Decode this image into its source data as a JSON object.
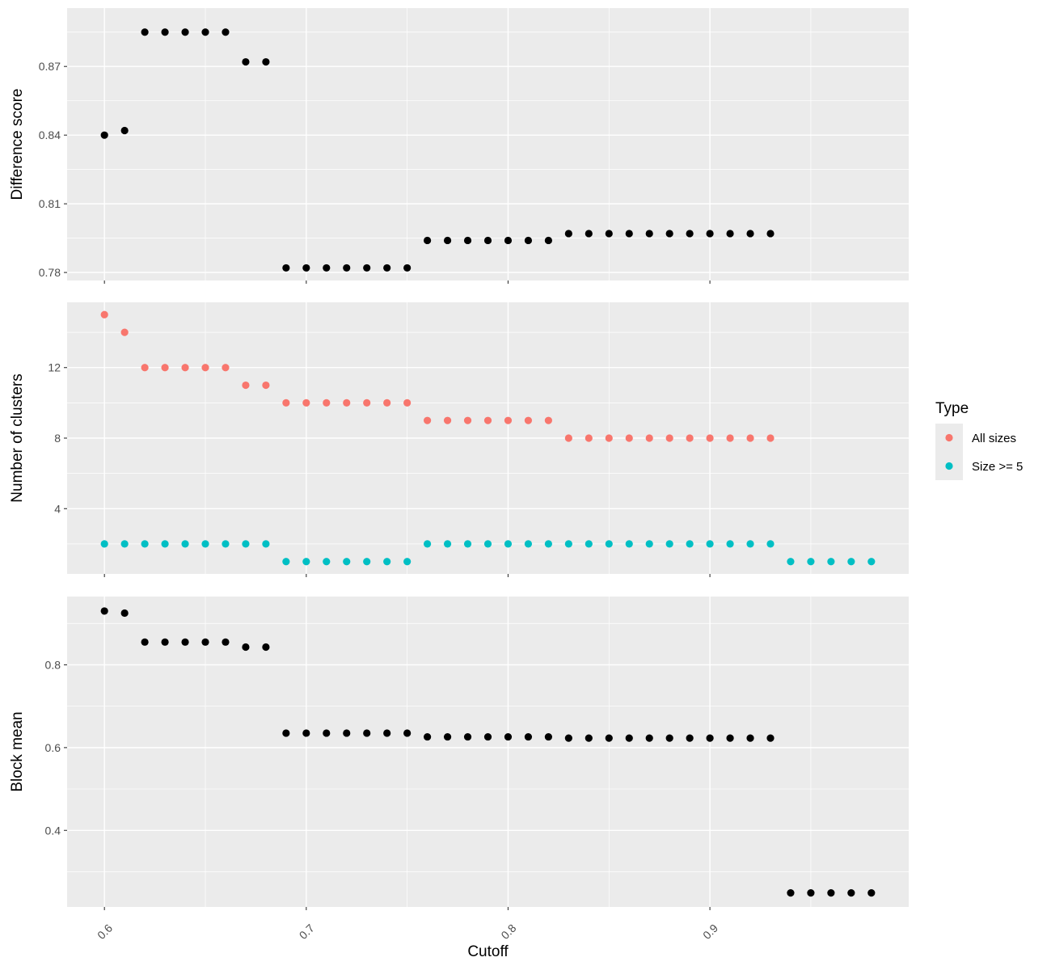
{
  "chart_data": [
    {
      "type": "scatter",
      "panel": "top",
      "xlabel": "",
      "ylabel": "Difference score",
      "xlim": [
        0.5815,
        0.9985
      ],
      "ylim": [
        0.7765,
        0.8955
      ],
      "yticks": [
        0.78,
        0.81,
        0.84,
        0.87
      ],
      "ytick_labels": [
        "0.78",
        "0.81",
        "0.84",
        "0.87"
      ],
      "grid": true,
      "series": [
        {
          "color": "#000000",
          "x": [
            0.6,
            0.61,
            0.62,
            0.63,
            0.64,
            0.65,
            0.66,
            0.67,
            0.68,
            0.69,
            0.7,
            0.71,
            0.72,
            0.73,
            0.74,
            0.75,
            0.76,
            0.77,
            0.78,
            0.79,
            0.8,
            0.81,
            0.82,
            0.83,
            0.84,
            0.85,
            0.86,
            0.87,
            0.88,
            0.89,
            0.9,
            0.91,
            0.92,
            0.93
          ],
          "y": [
            0.84,
            0.842,
            0.885,
            0.885,
            0.885,
            0.885,
            0.885,
            0.872,
            0.872,
            0.782,
            0.782,
            0.782,
            0.782,
            0.782,
            0.782,
            0.782,
            0.794,
            0.794,
            0.794,
            0.794,
            0.794,
            0.794,
            0.794,
            0.797,
            0.797,
            0.797,
            0.797,
            0.797,
            0.797,
            0.797,
            0.797,
            0.797,
            0.797,
            0.797
          ]
        }
      ]
    },
    {
      "type": "scatter",
      "panel": "middle",
      "xlabel": "",
      "ylabel": "Number of clusters",
      "xlim": [
        0.5815,
        0.9985
      ],
      "ylim": [
        0.3,
        15.7
      ],
      "yticks": [
        4,
        8,
        12
      ],
      "ytick_labels": [
        "4",
        "8",
        "12"
      ],
      "grid": true,
      "series": [
        {
          "name": "All sizes",
          "color": "#f8766d",
          "x": [
            0.6,
            0.61,
            0.62,
            0.63,
            0.64,
            0.65,
            0.66,
            0.67,
            0.68,
            0.69,
            0.7,
            0.71,
            0.72,
            0.73,
            0.74,
            0.75,
            0.76,
            0.77,
            0.78,
            0.79,
            0.8,
            0.81,
            0.82,
            0.83,
            0.84,
            0.85,
            0.86,
            0.87,
            0.88,
            0.89,
            0.9,
            0.91,
            0.92,
            0.93
          ],
          "y": [
            15,
            14,
            12,
            12,
            12,
            12,
            12,
            11,
            11,
            10,
            10,
            10,
            10,
            10,
            10,
            10,
            9,
            9,
            9,
            9,
            9,
            9,
            9,
            8,
            8,
            8,
            8,
            8,
            8,
            8,
            8,
            8,
            8,
            8
          ]
        },
        {
          "name": "Size >= 5",
          "color": "#00bfc4",
          "x": [
            0.6,
            0.61,
            0.62,
            0.63,
            0.64,
            0.65,
            0.66,
            0.67,
            0.68,
            0.69,
            0.7,
            0.71,
            0.72,
            0.73,
            0.74,
            0.75,
            0.76,
            0.77,
            0.78,
            0.79,
            0.8,
            0.81,
            0.82,
            0.83,
            0.84,
            0.85,
            0.86,
            0.87,
            0.88,
            0.89,
            0.9,
            0.91,
            0.92,
            0.93,
            0.94,
            0.95,
            0.96,
            0.97,
            0.98
          ],
          "y": [
            2,
            2,
            2,
            2,
            2,
            2,
            2,
            2,
            2,
            1,
            1,
            1,
            1,
            1,
            1,
            1,
            2,
            2,
            2,
            2,
            2,
            2,
            2,
            2,
            2,
            2,
            2,
            2,
            2,
            2,
            2,
            2,
            2,
            2,
            1,
            1,
            1,
            1,
            1
          ]
        }
      ]
    },
    {
      "type": "scatter",
      "panel": "bottom",
      "xlabel": "Cutoff",
      "ylabel": "Block mean",
      "xlim": [
        0.5815,
        0.9985
      ],
      "xticks": [
        0.6,
        0.7,
        0.8,
        0.9
      ],
      "xtick_labels": [
        "0.6",
        "0.7",
        "0.8",
        "0.9"
      ],
      "ylim": [
        0.215,
        0.965
      ],
      "yticks": [
        0.4,
        0.6,
        0.8
      ],
      "ytick_labels": [
        "0.4",
        "0.6",
        "0.8"
      ],
      "grid": true,
      "series": [
        {
          "color": "#000000",
          "x": [
            0.6,
            0.61,
            0.62,
            0.63,
            0.64,
            0.65,
            0.66,
            0.67,
            0.68,
            0.69,
            0.7,
            0.71,
            0.72,
            0.73,
            0.74,
            0.75,
            0.76,
            0.77,
            0.78,
            0.79,
            0.8,
            0.81,
            0.82,
            0.83,
            0.84,
            0.85,
            0.86,
            0.87,
            0.88,
            0.89,
            0.9,
            0.91,
            0.92,
            0.93,
            0.94,
            0.95,
            0.96,
            0.97,
            0.98
          ],
          "y": [
            0.93,
            0.925,
            0.855,
            0.855,
            0.855,
            0.855,
            0.855,
            0.843,
            0.843,
            0.635,
            0.635,
            0.635,
            0.635,
            0.635,
            0.635,
            0.635,
            0.626,
            0.626,
            0.626,
            0.626,
            0.626,
            0.626,
            0.626,
            0.623,
            0.623,
            0.623,
            0.623,
            0.623,
            0.623,
            0.623,
            0.623,
            0.623,
            0.623,
            0.623,
            0.249,
            0.249,
            0.249,
            0.249,
            0.249
          ]
        }
      ]
    }
  ],
  "legend": {
    "title": "Type",
    "position": "right",
    "items": [
      {
        "label": "All sizes",
        "color": "#f8766d"
      },
      {
        "label": "Size >= 5",
        "color": "#00bfc4"
      }
    ]
  }
}
